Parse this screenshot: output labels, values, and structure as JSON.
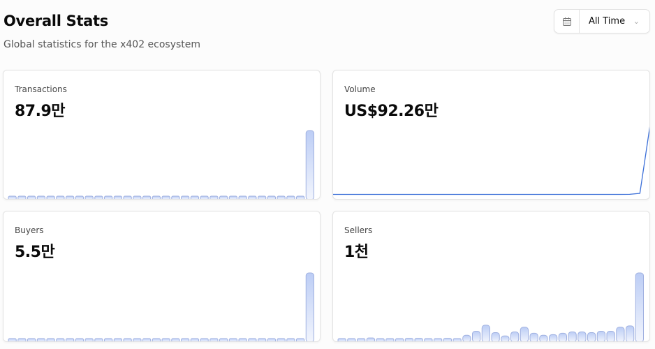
{
  "header": {
    "title": "Overall Stats",
    "subtitle": "Global statistics for the x402 ecosystem"
  },
  "range_picker": {
    "icon": "calendar-icon",
    "selected": "All Time",
    "chevron_icon": "chevron-down-icon"
  },
  "colors": {
    "bar_stroke": "#9fb0e0",
    "bar_fill_top": "#bccdf5",
    "bar_fill_bottom": "#f2f5fd",
    "line": "#3b6fd8"
  },
  "cards": [
    {
      "label": "Transactions",
      "value": "87.9만"
    },
    {
      "label": "Volume",
      "value": "US$92.26만"
    },
    {
      "label": "Buyers",
      "value": "5.5만"
    },
    {
      "label": "Sellers",
      "value": "1천"
    }
  ],
  "chart_data": [
    {
      "type": "bar",
      "series": [
        {
          "values": [
            0.5,
            0.5,
            0.5,
            0.5,
            0.5,
            0.5,
            0.5,
            0.5,
            0.5,
            0.5,
            0.5,
            0.5,
            0.5,
            0.5,
            0.5,
            0.5,
            0.5,
            0.5,
            0.5,
            0.5,
            0.5,
            0.5,
            1,
            1,
            1,
            1,
            1,
            2,
            2,
            2,
            2,
            100
          ]
        }
      ]
    },
    {
      "type": "line",
      "series": [
        {
          "values": [
            0.5,
            0.5,
            0.5,
            0.5,
            0.5,
            0.5,
            0.5,
            0.5,
            0.5,
            0.5,
            0.5,
            0.5,
            0.5,
            0.5,
            0.5,
            0.5,
            0.5,
            0.5,
            0.5,
            0.5,
            0.5,
            0.5,
            0.5,
            0.5,
            0.5,
            0.5,
            0.5,
            0.5,
            0.5,
            0.6,
            2,
            100
          ]
        }
      ]
    },
    {
      "type": "bar",
      "series": [
        {
          "values": [
            0.3,
            0.3,
            0.3,
            0.3,
            0.3,
            0.3,
            0.3,
            0.3,
            0.3,
            0.3,
            0.3,
            0.3,
            0.3,
            0.3,
            0.3,
            0.3,
            0.3,
            0.3,
            0.3,
            0.3,
            0.3,
            0.3,
            0.3,
            0.3,
            0.3,
            0.3,
            0.3,
            0.3,
            0.3,
            0.3,
            1,
            100
          ]
        }
      ]
    },
    {
      "type": "bar",
      "series": [
        {
          "values": [
            2,
            2,
            1.5,
            3,
            2,
            2,
            2,
            2.5,
            2.5,
            2,
            2,
            2.5,
            2,
            7,
            13,
            22,
            11,
            6,
            12,
            19,
            10,
            7,
            8,
            10,
            12,
            12,
            11,
            13,
            13,
            19,
            21,
            100
          ]
        }
      ]
    }
  ]
}
